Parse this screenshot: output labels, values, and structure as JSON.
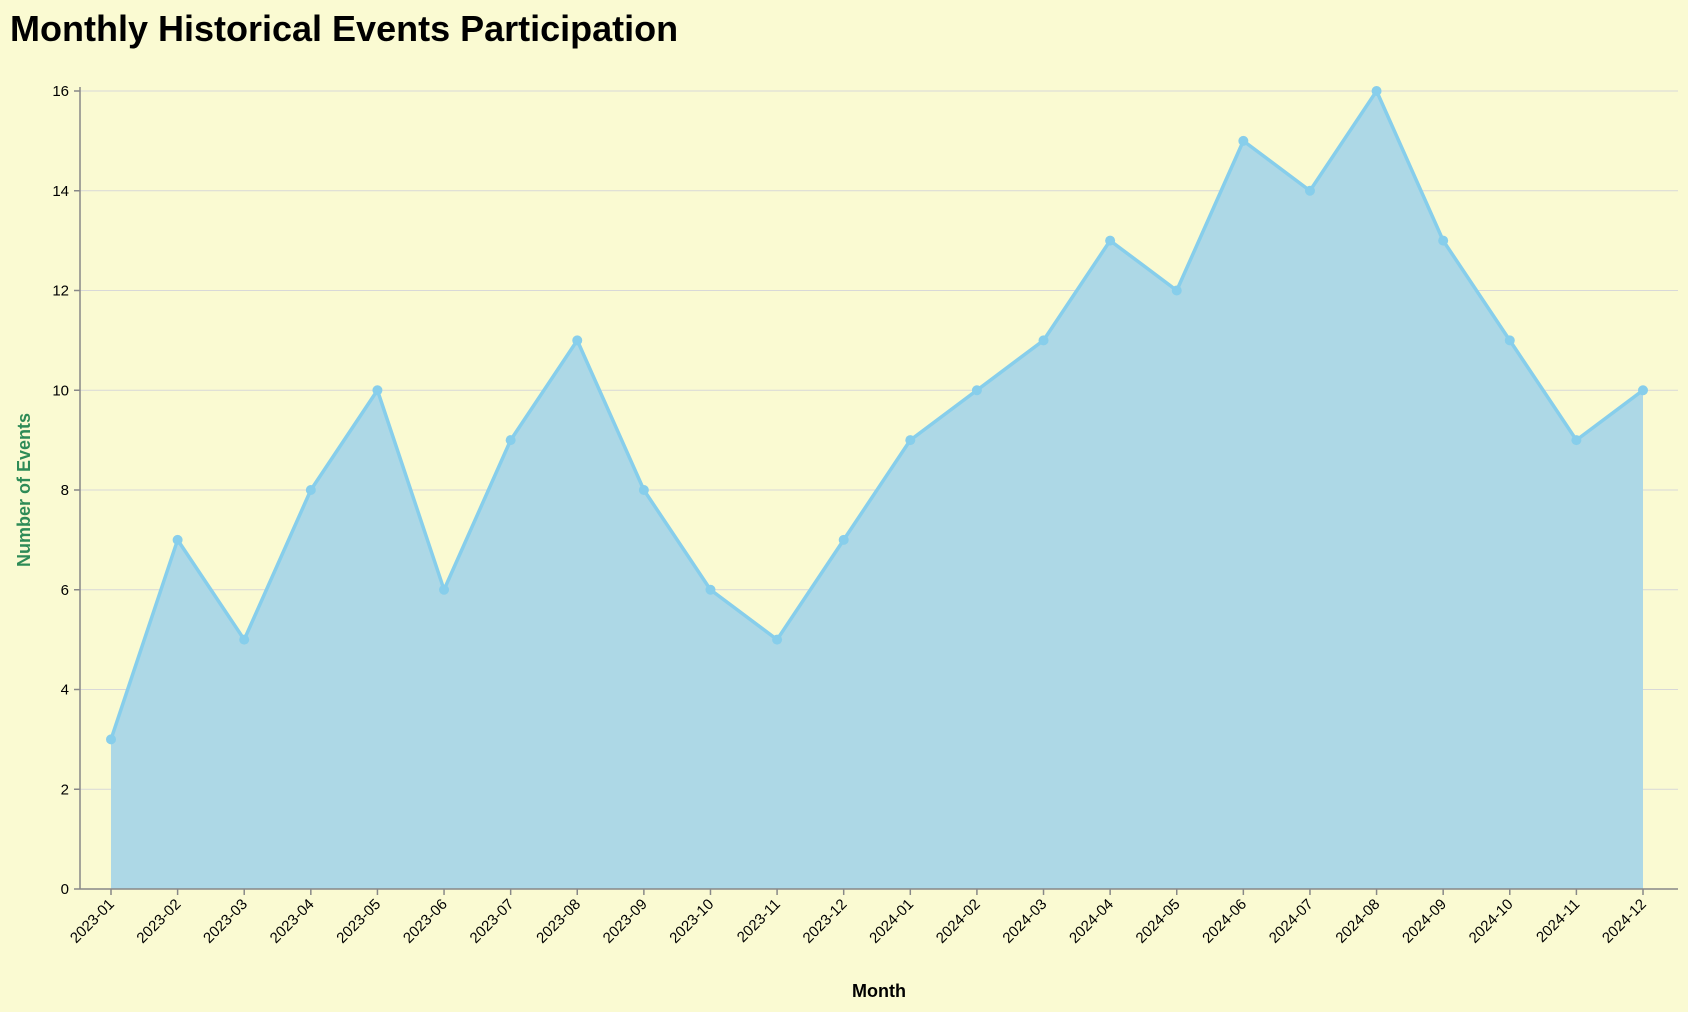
{
  "chart_data": {
    "type": "area",
    "title": "Monthly Historical Events Participation",
    "xlabel": "Month",
    "ylabel": "Number of Events",
    "categories": [
      "2023-01",
      "2023-02",
      "2023-03",
      "2023-04",
      "2023-05",
      "2023-06",
      "2023-07",
      "2023-08",
      "2023-09",
      "2023-10",
      "2023-11",
      "2023-12",
      "2024-01",
      "2024-02",
      "2024-03",
      "2024-04",
      "2024-05",
      "2024-06",
      "2024-07",
      "2024-08",
      "2024-09",
      "2024-10",
      "2024-11",
      "2024-12"
    ],
    "values": [
      3,
      7,
      5,
      8,
      10,
      6,
      9,
      11,
      8,
      6,
      5,
      7,
      9,
      10,
      11,
      13,
      12,
      15,
      14,
      16,
      13,
      11,
      9,
      10
    ],
    "ylim": [
      0,
      16
    ],
    "yticks": [
      0,
      2,
      4,
      6,
      8,
      10,
      12,
      14,
      16
    ],
    "grid": true,
    "colors": {
      "background": "#fafad2",
      "area_fill": "#add8e6",
      "line": "#87ceeb",
      "point": "#87ceeb",
      "ylabel": "#2e8b57"
    }
  }
}
